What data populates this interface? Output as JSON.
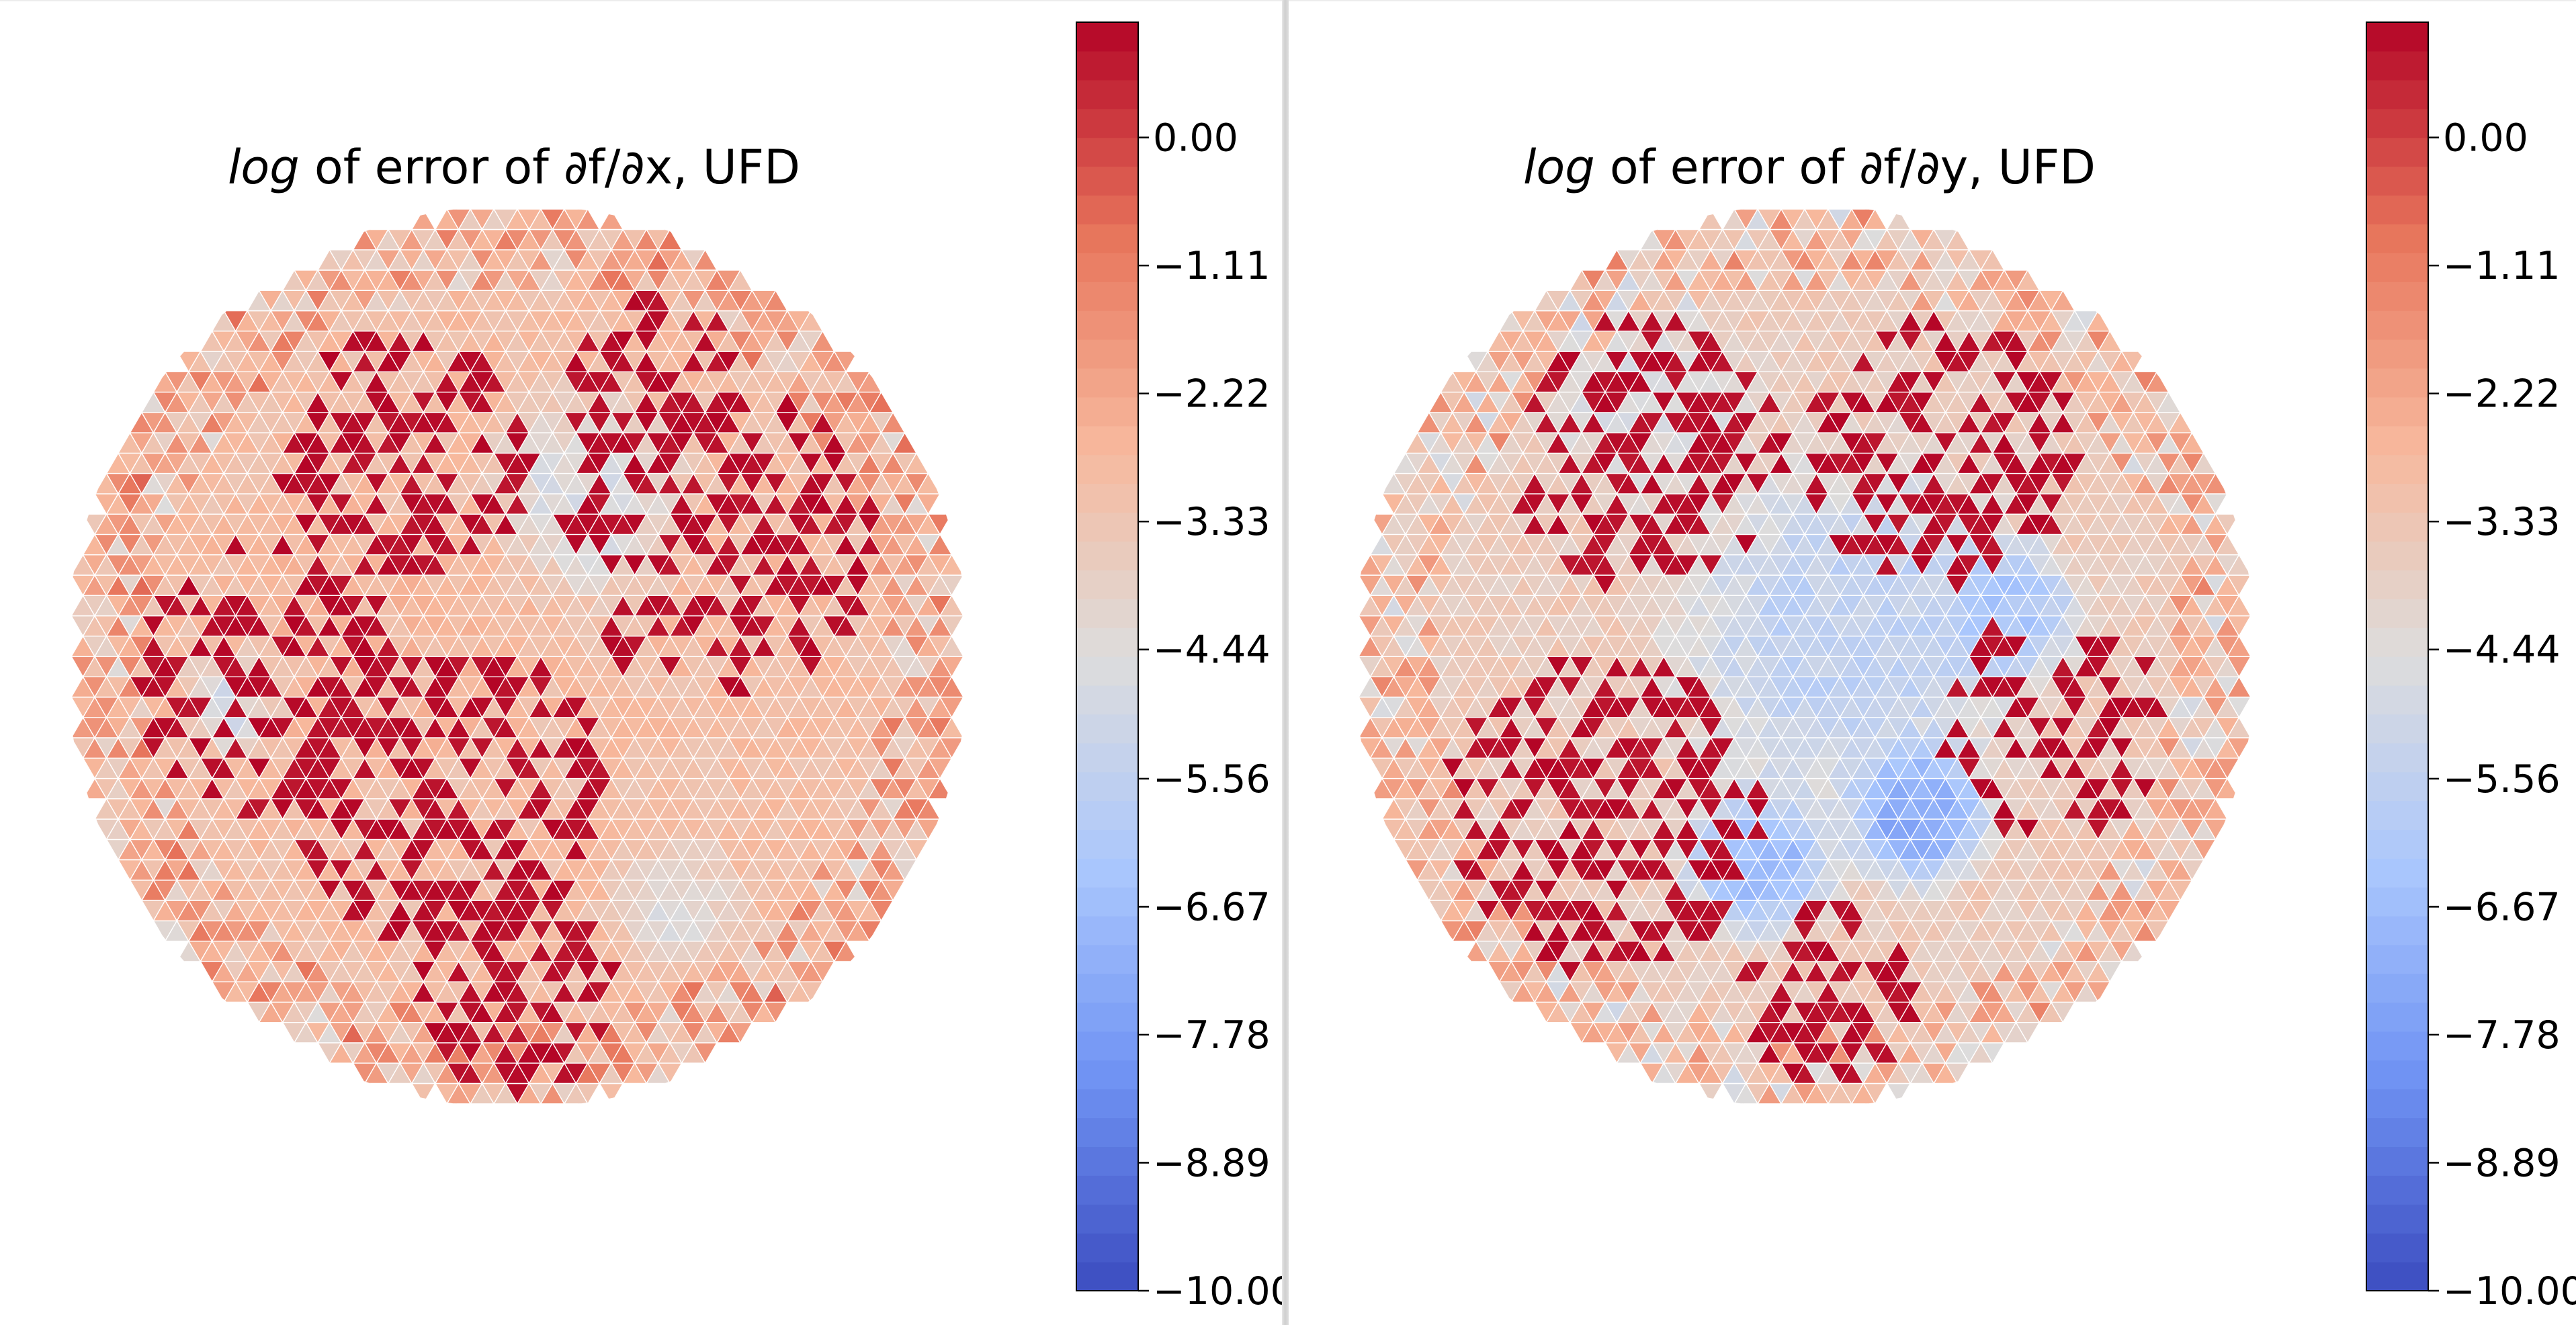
{
  "palette": {
    "stops": [
      "#3b4cc0",
      "#6f92f3",
      "#aac7fd",
      "#dddcdc",
      "#f7b89c",
      "#e7745b",
      "#b40426"
    ],
    "cell_edge": "#ffffff"
  },
  "chart_data": [
    {
      "type": "heatmap",
      "subtype": "triangular-mesh tripcolor on circular domain",
      "title_parts": [
        "log",
        " of error of ∂f/∂x, UFD"
      ],
      "title": "log of error of ∂f/∂x, UFD",
      "colorbar": {
        "min": -10.0,
        "max": 1.0,
        "tick_labels": [
          "0.00",
          "−1.11",
          "−2.22",
          "−3.33",
          "−4.44",
          "−5.56",
          "−6.67",
          "−7.78",
          "−8.89",
          "−10.00"
        ],
        "tick_values": [
          0.0,
          -1.11,
          -2.22,
          -3.33,
          -4.44,
          -5.56,
          -6.67,
          -7.78,
          -8.89,
          -10.0
        ],
        "colormap": "coolwarm"
      },
      "regions": [
        {
          "cx": 0.0,
          "cy": 0.0,
          "r": 1.05,
          "value": -3.0
        },
        {
          "cx": 0.15,
          "cy": 0.35,
          "r": 0.28,
          "value": -4.6
        },
        {
          "cx": -0.62,
          "cy": -0.1,
          "r": 0.14,
          "value": -5.4
        },
        {
          "cx": -0.3,
          "cy": 0.05,
          "r": 0.45,
          "value": -2.8
        },
        {
          "cx": 0.35,
          "cy": -0.55,
          "r": 0.18,
          "value": -4.3
        }
      ],
      "hot_bands": [
        {
          "cx": -0.25,
          "cy": 0.45,
          "r": 0.28,
          "density": 0.5
        },
        {
          "cx": 0.45,
          "cy": 0.25,
          "r": 0.35,
          "density": 0.45
        },
        {
          "cx": -0.55,
          "cy": -0.05,
          "r": 0.3,
          "density": 0.4
        },
        {
          "cx": -0.15,
          "cy": -0.3,
          "r": 0.35,
          "density": 0.45
        },
        {
          "cx": 0.0,
          "cy": -0.75,
          "r": 0.22,
          "density": 0.45
        },
        {
          "cx": 0.3,
          "cy": 0.6,
          "r": 0.2,
          "density": 0.4
        }
      ],
      "seed": 17
    },
    {
      "type": "heatmap",
      "subtype": "triangular-mesh tripcolor on circular domain",
      "title_parts": [
        "log",
        " of error of ∂f/∂y, UFD"
      ],
      "title": "log of error of ∂f/∂y, UFD",
      "colorbar": {
        "min": -10.0,
        "max": 1.0,
        "tick_labels": [
          "0.00",
          "−1.11",
          "−2.22",
          "−3.33",
          "−4.44",
          "−5.56",
          "−6.67",
          "−7.78",
          "−8.89",
          "−10.00"
        ],
        "tick_values": [
          0.0,
          -1.11,
          -2.22,
          -3.33,
          -4.44,
          -5.56,
          -6.67,
          -7.78,
          -8.89,
          -10.0
        ],
        "colormap": "coolwarm"
      },
      "regions": [
        {
          "cx": 0.0,
          "cy": 0.0,
          "r": 1.05,
          "value": -3.6
        },
        {
          "cx": 0.1,
          "cy": 0.05,
          "r": 0.5,
          "value": -5.5
        },
        {
          "cx": 0.25,
          "cy": -0.35,
          "r": 0.2,
          "value": -7.2
        },
        {
          "cx": -0.1,
          "cy": -0.45,
          "r": 0.22,
          "value": -6.6
        },
        {
          "cx": -0.35,
          "cy": 0.55,
          "r": 0.3,
          "value": -4.5
        },
        {
          "cx": 0.45,
          "cy": 0.1,
          "r": 0.2,
          "value": -6.2
        }
      ],
      "hot_bands": [
        {
          "cx": -0.35,
          "cy": 0.45,
          "r": 0.3,
          "density": 0.5
        },
        {
          "cx": 0.3,
          "cy": 0.45,
          "r": 0.3,
          "density": 0.45
        },
        {
          "cx": -0.45,
          "cy": -0.35,
          "r": 0.35,
          "density": 0.45
        },
        {
          "cx": 0.05,
          "cy": -0.75,
          "r": 0.2,
          "density": 0.45
        },
        {
          "cx": 0.55,
          "cy": -0.15,
          "r": 0.25,
          "density": 0.4
        }
      ],
      "seed": 91
    }
  ]
}
